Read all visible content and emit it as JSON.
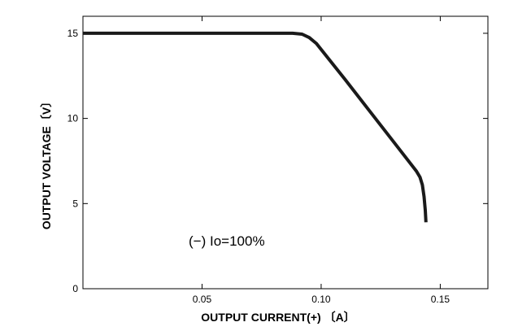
{
  "chart_data": {
    "type": "line",
    "title": "",
    "xlabel": "OUTPUT CURRENT(+)  〔A〕",
    "ylabel": "OUTPUT  VOLTAGE〔V〕",
    "xlim": [
      0,
      0.17
    ],
    "ylim": [
      0,
      16
    ],
    "x_ticks": [
      0.05,
      0.1,
      0.15
    ],
    "x_tick_labels": [
      "0.05",
      "0.10",
      "0.15"
    ],
    "y_ticks": [
      0,
      5,
      10,
      15
    ],
    "y_tick_labels": [
      "0",
      "5",
      "10",
      "15"
    ],
    "grid": false,
    "annotation": "(−) Io=100%",
    "series": [
      {
        "color": "#1a1a1a",
        "x": [
          0,
          0.03,
          0.06,
          0.088,
          0.092,
          0.095,
          0.098,
          0.11,
          0.12,
          0.13,
          0.14,
          0.1415,
          0.1425,
          0.1432,
          0.1437,
          0.144
        ],
        "y": [
          15.0,
          15.0,
          15.0,
          15.0,
          14.95,
          14.75,
          14.4,
          12.3,
          10.5,
          8.7,
          6.9,
          6.55,
          6.1,
          5.4,
          4.6,
          3.9
        ]
      }
    ]
  }
}
